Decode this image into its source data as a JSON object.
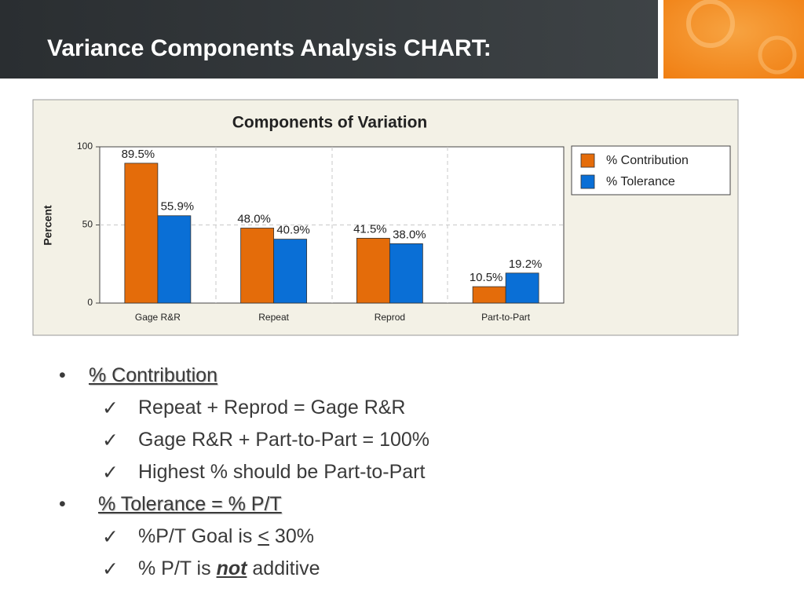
{
  "header": {
    "title": "Variance Components Analysis CHART:"
  },
  "chart_data": {
    "type": "bar",
    "title": "Components of Variation",
    "y_label": "Percent",
    "categories": [
      "Gage R&R",
      "Repeat",
      "Reprod",
      "Part-to-Part"
    ],
    "series": [
      {
        "name": "% Contribution",
        "color": "#e46c0a",
        "values": [
          89.5,
          48.0,
          41.5,
          10.5
        ],
        "value_labels": [
          "89.5%",
          "48.0%",
          "41.5%",
          "10.5%"
        ]
      },
      {
        "name": "% Tolerance",
        "color": "#0a6fd6",
        "values": [
          55.9,
          40.9,
          38.0,
          19.2
        ],
        "value_labels": [
          "55.9%",
          "40.9%",
          "38.0%",
          "19.2%"
        ]
      }
    ],
    "ylim": [
      0,
      100
    ],
    "yticks": [
      0,
      50,
      100
    ],
    "grid": true,
    "legend": "right"
  },
  "bullets": [
    {
      "heading": "% Contribution",
      "items": [
        [
          "Repeat + Reprod = Gage R&R"
        ],
        [
          "Gage R&R + Part-to-Part = 100%"
        ],
        [
          "Highest % should be Part-to-Part"
        ]
      ]
    },
    {
      "heading": "% Tolerance = % P/T",
      "items": [
        [
          "%P/T Goal is ",
          "<",
          " 30%"
        ],
        [
          "% P/T is ",
          "not",
          " additive"
        ]
      ]
    }
  ]
}
